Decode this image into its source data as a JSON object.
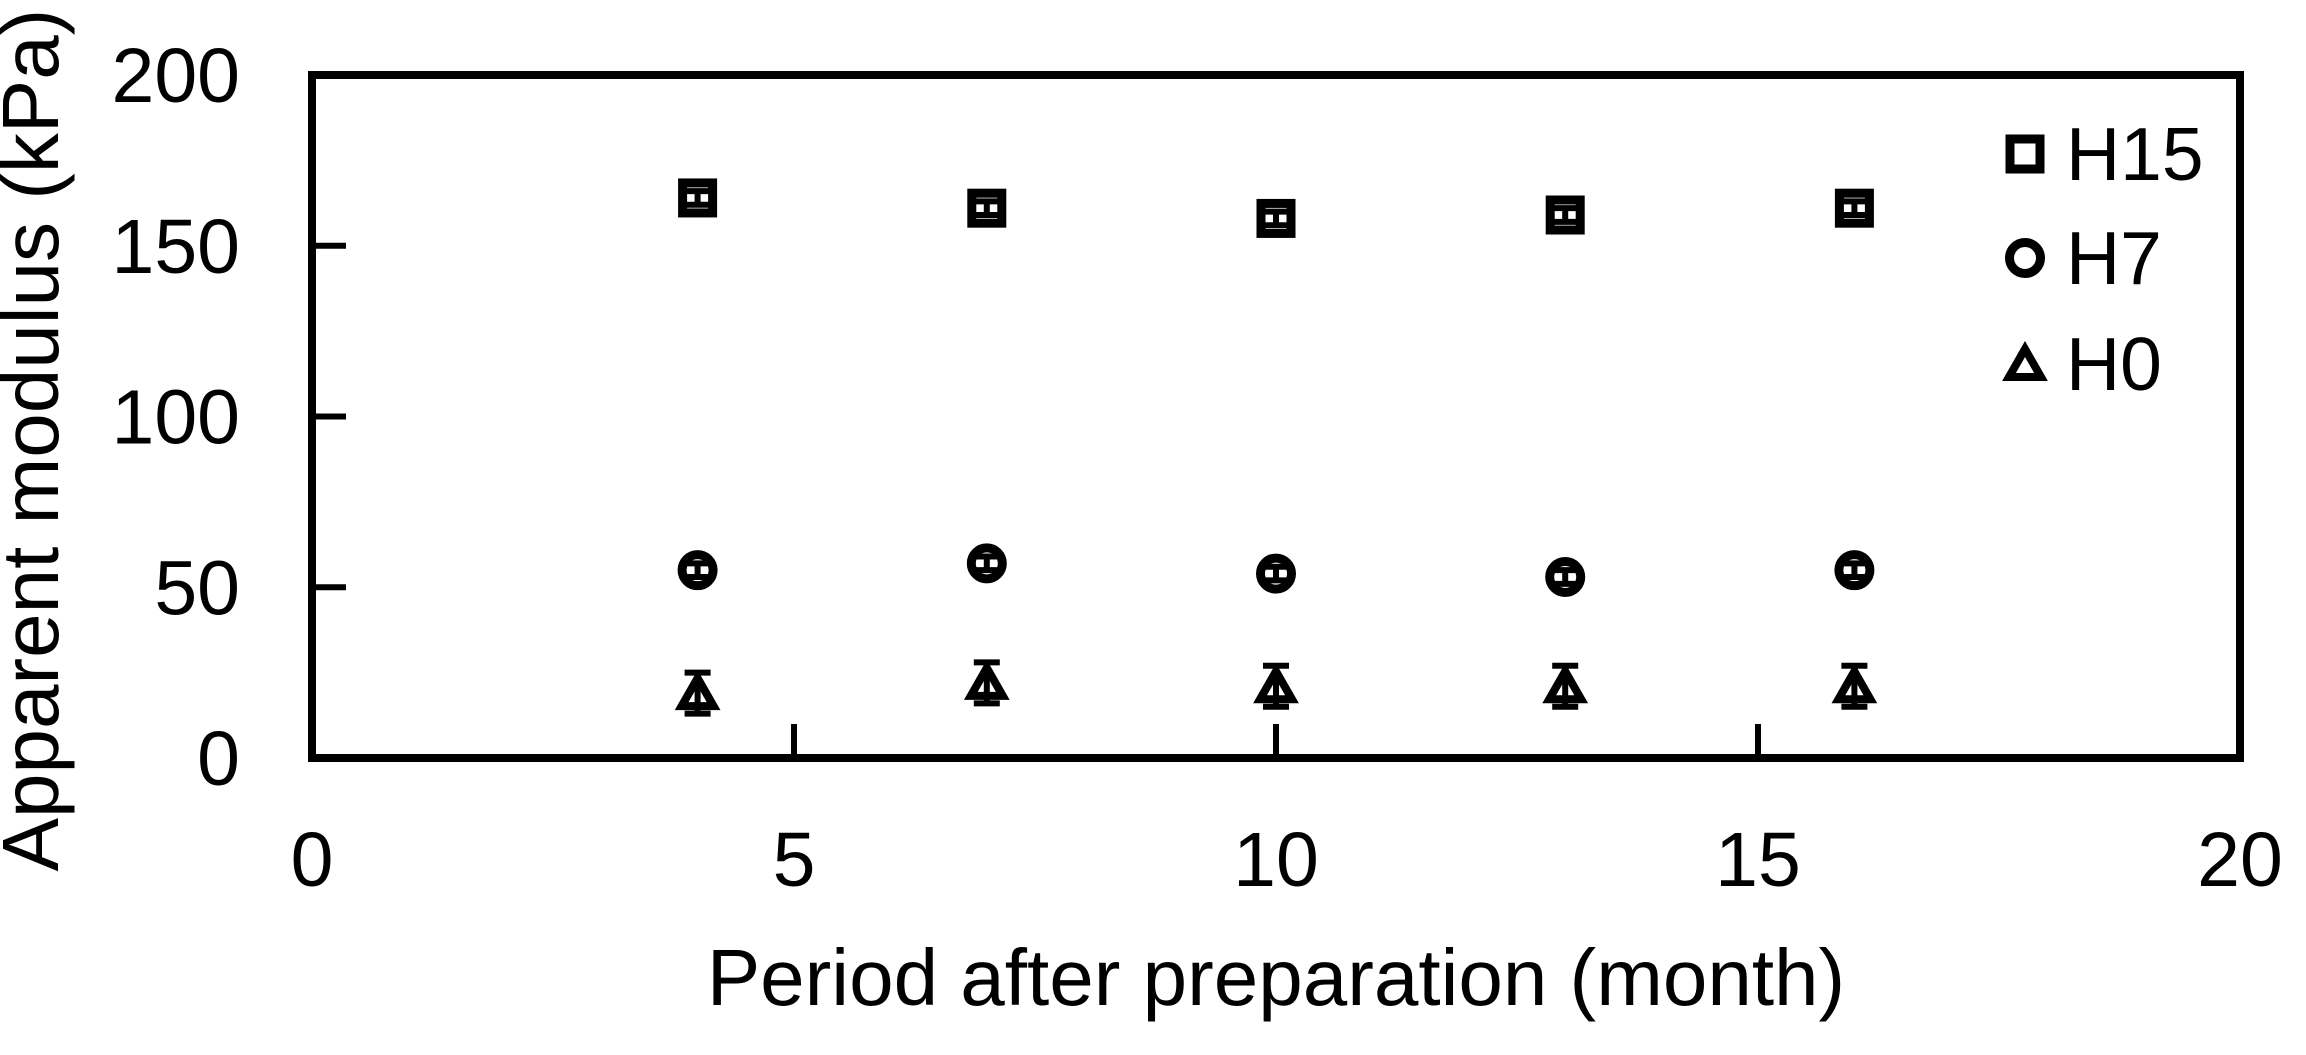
{
  "chart_data": {
    "type": "scatter",
    "title": "",
    "xlabel": "Period after preparation (month)",
    "ylabel": "Apparent modulus (kPa)",
    "xlim": [
      0,
      20
    ],
    "ylim": [
      0,
      200
    ],
    "xticks": [
      0,
      5,
      10,
      15,
      20
    ],
    "yticks": [
      0,
      50,
      100,
      150,
      200
    ],
    "grid": false,
    "legend_position": "top-right-inside",
    "x": [
      4,
      7,
      10,
      13,
      16
    ],
    "series": [
      {
        "name": "H15",
        "marker": "square",
        "values": [
          164,
          161,
          158,
          159,
          161
        ],
        "yerr": 2
      },
      {
        "name": "H7",
        "marker": "circle",
        "values": [
          55,
          57,
          54,
          53,
          55
        ],
        "yerr": 2
      },
      {
        "name": "H0",
        "marker": "triangle",
        "values": [
          19,
          22,
          21,
          21,
          21
        ],
        "yerr": 6
      }
    ],
    "colors": {
      "stroke": "#000000",
      "background": "#ffffff"
    }
  }
}
